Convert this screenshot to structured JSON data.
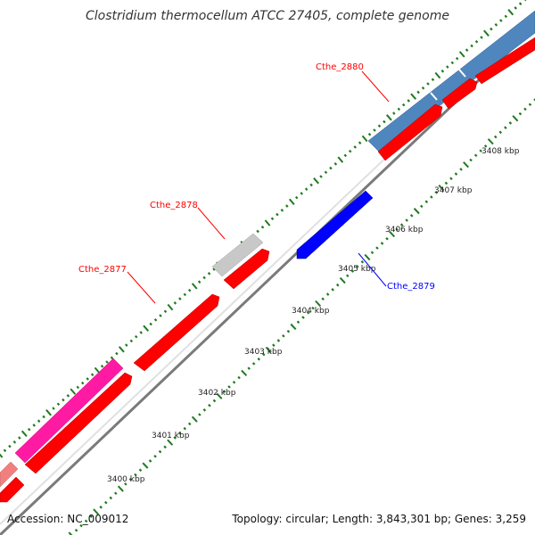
{
  "title": "Clostridium thermocellum ATCC 27405, complete genome",
  "footer": {
    "accession": "Accession: NC_009012",
    "summary": "Topology: circular; Length: 3,843,301 bp; Genes: 3,259"
  },
  "colors": {
    "gene_red": "#ff0000",
    "gene_blue": "#0000ff",
    "cds_steelblue": "#4f86bd",
    "cds_magenta": "#ff1aa3",
    "cds_pink": "#f08080",
    "cds_gray": "#c8c8c8",
    "backbone": "#808080",
    "tick_green": "#1f7a1f"
  },
  "scale_ticks": [
    {
      "label": "3400 kbp",
      "kbp": 3400
    },
    {
      "label": "3401 kbp",
      "kbp": 3401
    },
    {
      "label": "3402 kbp",
      "kbp": 3402
    },
    {
      "label": "3403 kbp",
      "kbp": 3403
    },
    {
      "label": "3404 kbp",
      "kbp": 3404
    },
    {
      "label": "3405 kbp",
      "kbp": 3405
    },
    {
      "label": "3406 kbp",
      "kbp": 3406
    },
    {
      "label": "3407 kbp",
      "kbp": 3407
    },
    {
      "label": "3408 kbp",
      "kbp": 3408
    }
  ],
  "gene_labels": [
    {
      "name": "Cthe_2877",
      "color": "#ff0000"
    },
    {
      "name": "Cthe_2878",
      "color": "#ff0000"
    },
    {
      "name": "Cthe_2879",
      "color": "#0000ff"
    },
    {
      "name": "Cthe_2880",
      "color": "#ff0000"
    }
  ]
}
